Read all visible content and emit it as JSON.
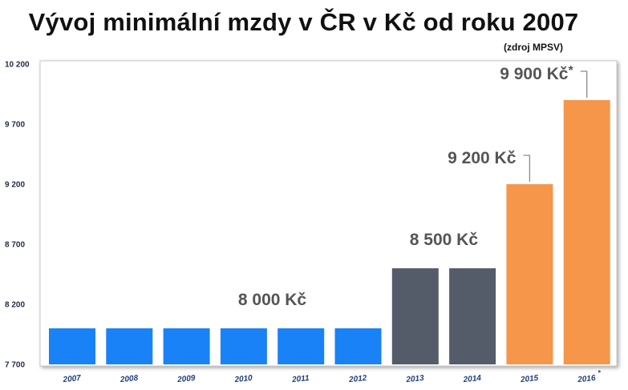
{
  "chart_data": {
    "type": "bar",
    "title": "Vývoj minimální mzdy v ČR v Kč od roku 2007",
    "subtitle": "(zdroj MPSV)",
    "categories": [
      "2007",
      "2008",
      "2009",
      "2010",
      "2011",
      "2012",
      "2013",
      "2014",
      "2015",
      "2016*"
    ],
    "values": [
      8000,
      8000,
      8000,
      8000,
      8000,
      8000,
      8500,
      8500,
      9200,
      9900
    ],
    "bar_colors": [
      "#1a82f7",
      "#1a82f7",
      "#1a82f7",
      "#1a82f7",
      "#1a82f7",
      "#1a82f7",
      "#555c69",
      "#555c69",
      "#f5964a",
      "#f5964a"
    ],
    "ylim": [
      7700,
      10200
    ],
    "yticks": [
      "7 700",
      "8 200",
      "8 700",
      "9 200",
      "9 700",
      "10 200"
    ],
    "ytick_values": [
      7700,
      8200,
      8700,
      9200,
      9700,
      10200
    ],
    "annotations": [
      {
        "text": "8 000 Kč",
        "value": 8000,
        "bars": [
          3,
          4
        ],
        "leader": false
      },
      {
        "text": "8 500 Kč",
        "value": 8500,
        "bars": [
          6,
          7
        ],
        "leader": false
      },
      {
        "text": "9 200 Kč",
        "value": 9200,
        "bars": [
          8
        ],
        "leader": true
      },
      {
        "text": "9 900 Kč*",
        "value": 9900,
        "bars": [
          9
        ],
        "leader": true
      }
    ],
    "grid": false,
    "xlabel": "",
    "ylabel": ""
  }
}
